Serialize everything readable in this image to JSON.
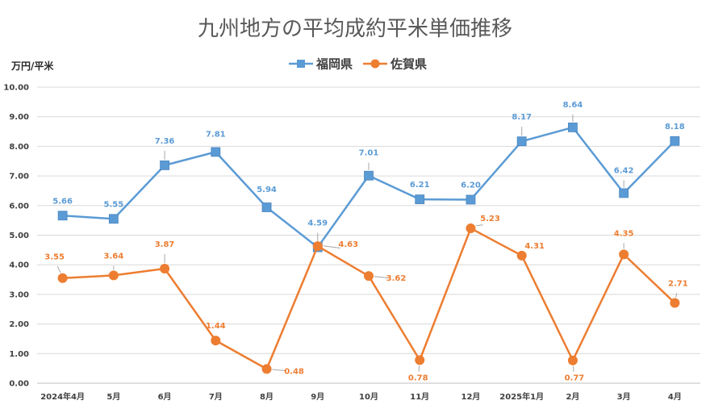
{
  "chart_data": {
    "type": "line",
    "title": "九州地方の平均成約平米単価推移",
    "ylabel": "万円/平米",
    "xlabel": "",
    "ylim": [
      0,
      10
    ],
    "ytick_step": 1,
    "grid": true,
    "legend": "top-center",
    "categories": [
      "2024年4月",
      "5月",
      "6月",
      "7月",
      "8月",
      "9月",
      "10月",
      "11月",
      "12月",
      "2025年1月",
      "2月",
      "3月",
      "4月"
    ],
    "series": [
      {
        "name": "福岡県",
        "color": "#5B9BD5",
        "marker": "square",
        "values": [
          5.66,
          5.55,
          7.36,
          7.81,
          5.94,
          4.59,
          7.01,
          6.21,
          6.2,
          8.17,
          8.64,
          6.42,
          8.18
        ],
        "labels": [
          "5.66",
          "5.55",
          "7.36",
          "7.81",
          "5.94",
          "4.59",
          "7.01",
          "6.21",
          "6.20",
          "8.17",
          "8.64",
          "6.42",
          "8.18"
        ]
      },
      {
        "name": "佐賀県",
        "color": "#ED7D31",
        "marker": "circle",
        "values": [
          3.55,
          3.64,
          3.87,
          1.44,
          0.48,
          4.63,
          3.62,
          0.78,
          5.23,
          4.31,
          0.77,
          4.35,
          2.71
        ],
        "labels": [
          "3.55",
          "3.64",
          "3.87",
          "1.44",
          "0.48",
          "4.63",
          "3.62",
          "0.78",
          "5.23",
          "4.31",
          "0.77",
          "4.35",
          "2.71"
        ]
      }
    ]
  }
}
